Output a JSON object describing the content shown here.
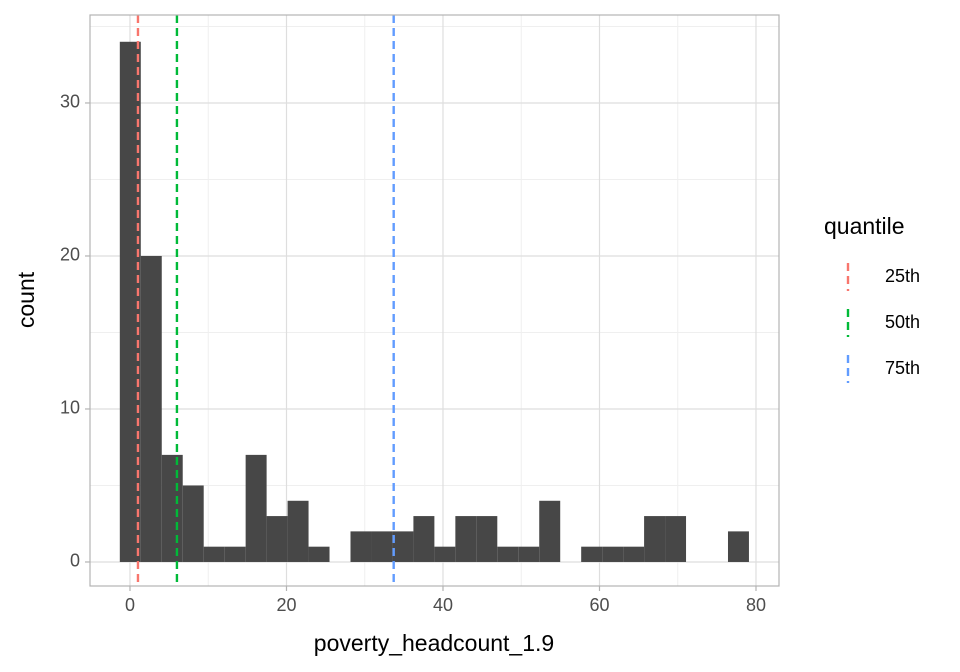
{
  "chart_data": {
    "type": "histogram",
    "x_label": "poverty_headcount_1.9",
    "y_label": "count",
    "bins": [
      -1.3,
      1.38,
      4.06,
      6.74,
      9.42,
      12.1,
      14.78,
      17.46,
      20.14,
      22.82,
      25.5,
      28.18,
      30.86,
      33.54,
      36.22,
      38.9,
      41.58,
      44.26,
      46.94,
      49.62,
      52.3,
      54.98,
      57.66,
      60.34,
      63.02,
      65.7,
      68.38,
      71.06,
      73.74,
      76.42,
      79.1
    ],
    "values": [
      34,
      20,
      7,
      5,
      1,
      1,
      7,
      3,
      4,
      1,
      0,
      2,
      2,
      2,
      3,
      1,
      3,
      3,
      1,
      1,
      4,
      0,
      1,
      1,
      1,
      3,
      3,
      0,
      0,
      2
    ],
    "color": "#474747",
    "vlines": [
      {
        "name": "25th",
        "value": 1.02,
        "color": "#F8766D"
      },
      {
        "name": "50th",
        "value": 6.0,
        "color": "#00BA38"
      },
      {
        "name": "75th",
        "value": 33.7,
        "color": "#619CFF"
      }
    ],
    "legend_title": "quantile",
    "legend_position": "right",
    "xlim": [
      -5.11,
      82.94
    ],
    "ylim": [
      -1.57,
      35.75
    ],
    "xticks": [
      0,
      20,
      40,
      60,
      80
    ],
    "yticks": [
      0,
      10,
      20,
      30
    ],
    "grid": true
  }
}
